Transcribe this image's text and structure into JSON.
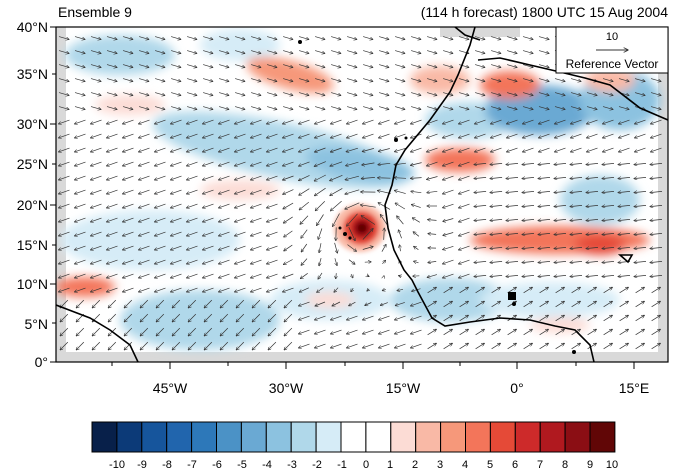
{
  "header": {
    "left_title": "Ensemble 9",
    "right_title": "(114 h forecast) 1800 UTC 15 Aug 2004"
  },
  "map": {
    "lat_ticks": [
      "0°",
      "5°N",
      "10°N",
      "15°N",
      "20°N",
      "25°N",
      "30°N",
      "35°N",
      "40°N"
    ],
    "lon_ticks": [
      "45°W",
      "30°W",
      "15°W",
      "0°",
      "15°E"
    ],
    "reference_vector": {
      "value": "10",
      "label": "Reference Vector"
    },
    "land_mask_color": "#d9d9d9",
    "coastline_color": "#000000",
    "vector_color": "#333333"
  },
  "colorbar": {
    "labels": [
      "-10",
      "-9",
      "-8",
      "-7",
      "-6",
      "-5",
      "-4",
      "-3",
      "-2",
      "-1",
      "0",
      "1",
      "2",
      "3",
      "4",
      "5",
      "6",
      "7",
      "8",
      "9",
      "10"
    ],
    "colors": [
      "#08204a",
      "#0c3a78",
      "#16559c",
      "#2165ad",
      "#2d78b9",
      "#4b92c6",
      "#6aa9d3",
      "#8cc2e0",
      "#b0d8ea",
      "#d6ecf7",
      "#ffffff",
      "#ffffff",
      "#fcdcd5",
      "#f9b9a6",
      "#f6987a",
      "#f3755a",
      "#e54a37",
      "#cd2a2a",
      "#b0191f",
      "#8b0e14",
      "#610606"
    ]
  }
}
